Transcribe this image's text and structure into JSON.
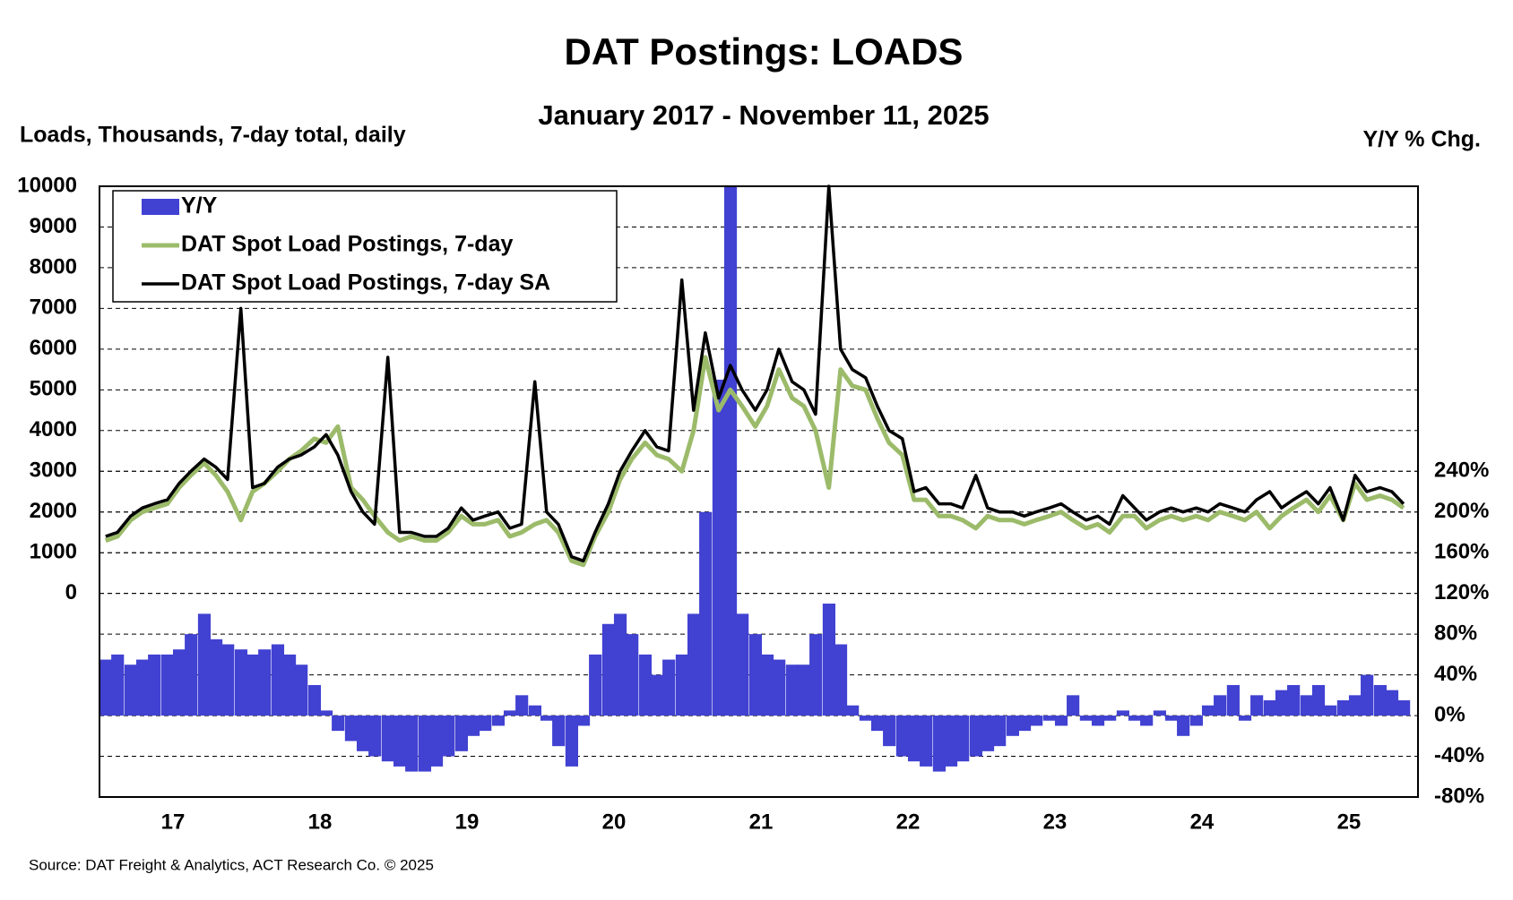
{
  "chart_data": {
    "type": "combo",
    "title": "DAT Postings: LOADS",
    "subtitle": "January 2017 - November 11, 2025",
    "y_label": "Loads, Thousands, 7-day total, daily",
    "y2_label": "Y/Y % Chg.",
    "source": "Source:  DAT Freight & Analytics, ACT Research Co. © 2025",
    "legend_position": "upper left",
    "grid": true,
    "xlim": [
      2017,
      2025.97
    ],
    "xticks": [
      {
        "value": 2017.5,
        "label": "17"
      },
      {
        "value": 2018.5,
        "label": "18"
      },
      {
        "value": 2019.5,
        "label": "19"
      },
      {
        "value": 2020.5,
        "label": "20"
      },
      {
        "value": 2021.5,
        "label": "21"
      },
      {
        "value": 2022.5,
        "label": "22"
      },
      {
        "value": 2023.5,
        "label": "23"
      },
      {
        "value": 2024.5,
        "label": "24"
      },
      {
        "value": 2025.5,
        "label": "25"
      }
    ],
    "ylim": [
      -5000,
      10000
    ],
    "yticks": [
      0,
      1000,
      2000,
      3000,
      4000,
      5000,
      6000,
      7000,
      8000,
      9000,
      10000
    ],
    "y2lim": [
      -80,
      520
    ],
    "y2ticks": [
      {
        "value": -80,
        "label": "-80%"
      },
      {
        "value": -40,
        "label": "-40%"
      },
      {
        "value": 0,
        "label": "0%"
      },
      {
        "value": 40,
        "label": "40%"
      },
      {
        "value": 80,
        "label": "80%"
      },
      {
        "value": 120,
        "label": "120%"
      },
      {
        "value": 160,
        "label": "160%"
      },
      {
        "value": 200,
        "label": "200%"
      },
      {
        "value": 240,
        "label": "240%"
      }
    ],
    "x": [
      2017.0,
      2017.08,
      2017.17,
      2017.25,
      2017.33,
      2017.42,
      2017.5,
      2017.58,
      2017.67,
      2017.75,
      2017.83,
      2017.92,
      2018.0,
      2018.08,
      2018.17,
      2018.25,
      2018.33,
      2018.42,
      2018.5,
      2018.58,
      2018.67,
      2018.75,
      2018.83,
      2018.92,
      2019.0,
      2019.08,
      2019.17,
      2019.25,
      2019.33,
      2019.42,
      2019.5,
      2019.58,
      2019.67,
      2019.75,
      2019.83,
      2019.92,
      2020.0,
      2020.08,
      2020.17,
      2020.25,
      2020.33,
      2020.42,
      2020.5,
      2020.58,
      2020.67,
      2020.75,
      2020.83,
      2020.92,
      2021.0,
      2021.08,
      2021.17,
      2021.25,
      2021.33,
      2021.42,
      2021.5,
      2021.58,
      2021.67,
      2021.75,
      2021.83,
      2021.92,
      2022.0,
      2022.08,
      2022.17,
      2022.25,
      2022.33,
      2022.42,
      2022.5,
      2022.58,
      2022.67,
      2022.75,
      2022.83,
      2022.92,
      2023.0,
      2023.08,
      2023.17,
      2023.25,
      2023.33,
      2023.42,
      2023.5,
      2023.58,
      2023.67,
      2023.75,
      2023.83,
      2023.92,
      2024.0,
      2024.08,
      2024.17,
      2024.25,
      2024.33,
      2024.42,
      2024.5,
      2024.58,
      2024.67,
      2024.75,
      2024.83,
      2024.92,
      2025.0,
      2025.08,
      2025.17,
      2025.25,
      2025.33,
      2025.42,
      2025.5,
      2025.58,
      2025.67,
      2025.75,
      2025.83
    ],
    "series": [
      {
        "name": "Y/Y",
        "type": "bar",
        "axis": "y2",
        "color": "#4141d2",
        "values": [
          55,
          60,
          50,
          55,
          60,
          60,
          65,
          80,
          100,
          75,
          70,
          65,
          60,
          65,
          70,
          60,
          50,
          30,
          5,
          -15,
          -25,
          -35,
          -40,
          -45,
          -50,
          -55,
          -55,
          -50,
          -40,
          -35,
          -20,
          -15,
          -10,
          5,
          20,
          10,
          -5,
          -30,
          -50,
          -10,
          60,
          90,
          100,
          80,
          60,
          40,
          55,
          60,
          100,
          200,
          330,
          520,
          100,
          80,
          60,
          55,
          50,
          50,
          80,
          110,
          70,
          10,
          -5,
          -15,
          -30,
          -40,
          -45,
          -50,
          -55,
          -50,
          -45,
          -40,
          -35,
          -30,
          -20,
          -15,
          -10,
          -5,
          -10,
          20,
          -5,
          -10,
          -5,
          5,
          -5,
          -10,
          5,
          -5,
          -20,
          -10,
          10,
          20,
          30,
          -5,
          20,
          15,
          25,
          30,
          20,
          30,
          10,
          15,
          20,
          40,
          30,
          25,
          15
        ]
      },
      {
        "name": "DAT Spot Load Postings, 7-day",
        "type": "line",
        "axis": "y",
        "color": "#9cbb6a",
        "width": 5,
        "values": [
          1300,
          1400,
          1800,
          2000,
          2100,
          2200,
          2600,
          2900,
          3200,
          2900,
          2500,
          1800,
          2500,
          2700,
          3000,
          3300,
          3500,
          3800,
          3700,
          4100,
          2600,
          2300,
          1900,
          1500,
          1300,
          1400,
          1300,
          1300,
          1500,
          1900,
          1700,
          1700,
          1800,
          1400,
          1500,
          1700,
          1800,
          1500,
          800,
          700,
          1400,
          2000,
          2800,
          3300,
          3700,
          3400,
          3300,
          3000,
          4000,
          5800,
          4500,
          5000,
          4600,
          4100,
          4600,
          5500,
          4800,
          4600,
          4000,
          2600,
          5500,
          5100,
          5000,
          4300,
          3700,
          3400,
          2300,
          2300,
          1900,
          1900,
          1800,
          1600,
          1900,
          1800,
          1800,
          1700,
          1800,
          1900,
          2000,
          1800,
          1600,
          1700,
          1500,
          1900,
          1900,
          1600,
          1800,
          1900,
          1800,
          1900,
          1800,
          2000,
          1900,
          1800,
          2000,
          1600,
          1900,
          2100,
          2300,
          2000,
          2400,
          1800,
          2700,
          2300,
          2400,
          2300,
          2100
        ]
      },
      {
        "name": "DAT Spot Load Postings, 7-day SA",
        "type": "line",
        "axis": "y",
        "color": "#000000",
        "width": 3.5,
        "values": [
          1400,
          1500,
          1900,
          2100,
          2200,
          2300,
          2700,
          3000,
          3300,
          3100,
          2800,
          7000,
          2600,
          2700,
          3100,
          3300,
          3400,
          3600,
          3900,
          3400,
          2500,
          2000,
          1700,
          5800,
          1500,
          1500,
          1400,
          1400,
          1600,
          2100,
          1800,
          1900,
          2000,
          1600,
          1700,
          5200,
          2000,
          1700,
          900,
          800,
          1500,
          2200,
          3000,
          3500,
          4000,
          3600,
          3500,
          7700,
          4500,
          6400,
          4800,
          5600,
          5000,
          4500,
          5000,
          6000,
          5200,
          5000,
          4400,
          10000,
          6000,
          5500,
          5300,
          4600,
          4000,
          3800,
          2500,
          2600,
          2200,
          2200,
          2100,
          2900,
          2100,
          2000,
          2000,
          1900,
          2000,
          2100,
          2200,
          2000,
          1800,
          1900,
          1700,
          2400,
          2100,
          1800,
          2000,
          2100,
          2000,
          2100,
          2000,
          2200,
          2100,
          2000,
          2300,
          2500,
          2100,
          2300,
          2500,
          2200,
          2600,
          1800,
          2900,
          2500,
          2600,
          2500,
          2200
        ]
      }
    ]
  }
}
